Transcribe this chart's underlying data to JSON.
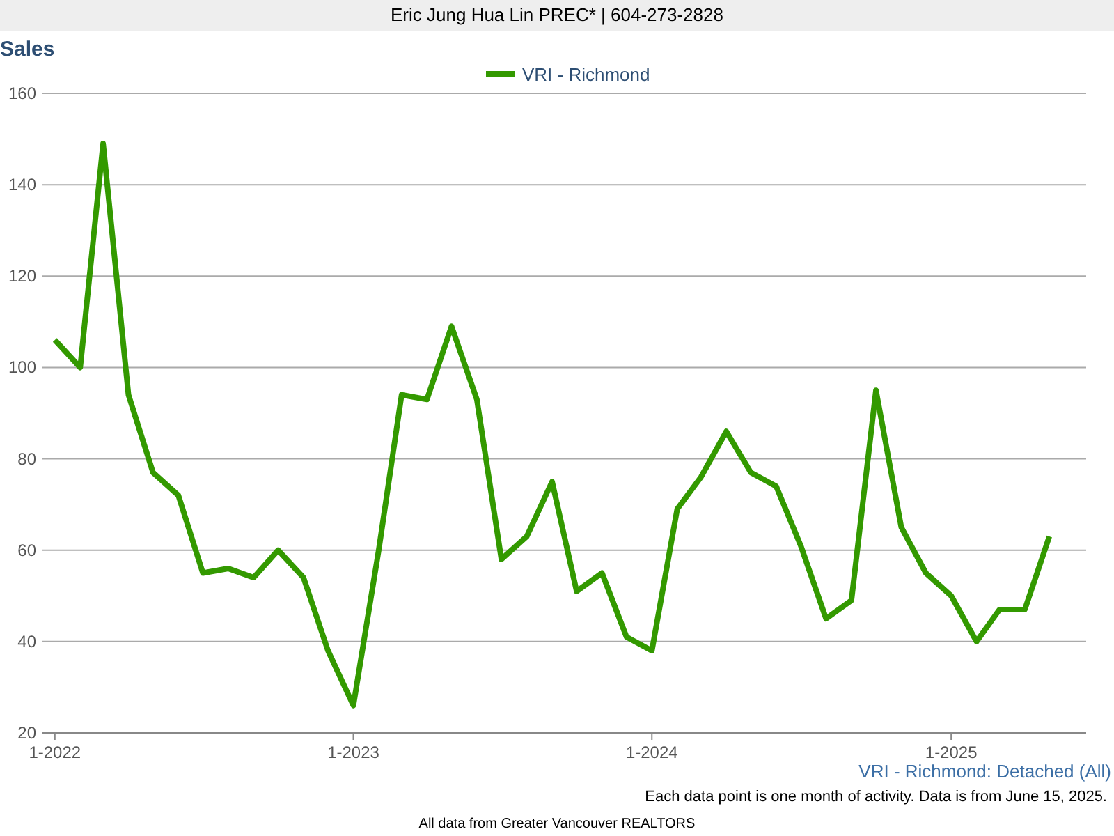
{
  "chart_data": {
    "type": "line",
    "title": "Sales",
    "legend": "top",
    "x": [
      "2022-01",
      "2022-02",
      "2022-03",
      "2022-04",
      "2022-05",
      "2022-06",
      "2022-07",
      "2022-08",
      "2022-09",
      "2022-10",
      "2022-11",
      "2022-12",
      "2023-01",
      "2023-02",
      "2023-03",
      "2023-04",
      "2023-05",
      "2023-06",
      "2023-07",
      "2023-08",
      "2023-09",
      "2023-10",
      "2023-11",
      "2023-12",
      "2024-01",
      "2024-02",
      "2024-03",
      "2024-04",
      "2024-05",
      "2024-06",
      "2024-07",
      "2024-08",
      "2024-09",
      "2024-10",
      "2024-11",
      "2024-12",
      "2025-01",
      "2025-02",
      "2025-03",
      "2025-04",
      "2025-05"
    ],
    "series": [
      {
        "name": "VRI - Richmond",
        "color": "#339900",
        "values": [
          106,
          100,
          149,
          94,
          77,
          72,
          55,
          56,
          54,
          60,
          54,
          38,
          26,
          60,
          94,
          93,
          109,
          93,
          58,
          63,
          75,
          51,
          55,
          41,
          38,
          69,
          76,
          86,
          77,
          74,
          61,
          45,
          49,
          95,
          65,
          55,
          50,
          40,
          47,
          47,
          63
        ]
      }
    ],
    "xlim": [
      "2021-12-16",
      "2025-06-15"
    ],
    "xticks": [
      {
        "value": "2022-01",
        "label": "1-2022"
      },
      {
        "value": "2023-01",
        "label": "1-2023"
      },
      {
        "value": "2024-01",
        "label": "1-2024"
      },
      {
        "value": "2025-01",
        "label": "1-2025"
      }
    ],
    "ylim": [
      20,
      160
    ],
    "yticks": [
      20,
      40,
      60,
      80,
      100,
      120,
      140,
      160
    ],
    "grid": "y",
    "marker": "none",
    "line_style": "solid",
    "annotations": [
      "Eric Jung Hua Lin PREC* | 604-273-2828",
      "VRI - Richmond: Detached (All)",
      "Each data point is one month of activity. Data is from June 15, 2025.",
      "All data from Greater Vancouver REALTORS"
    ]
  }
}
